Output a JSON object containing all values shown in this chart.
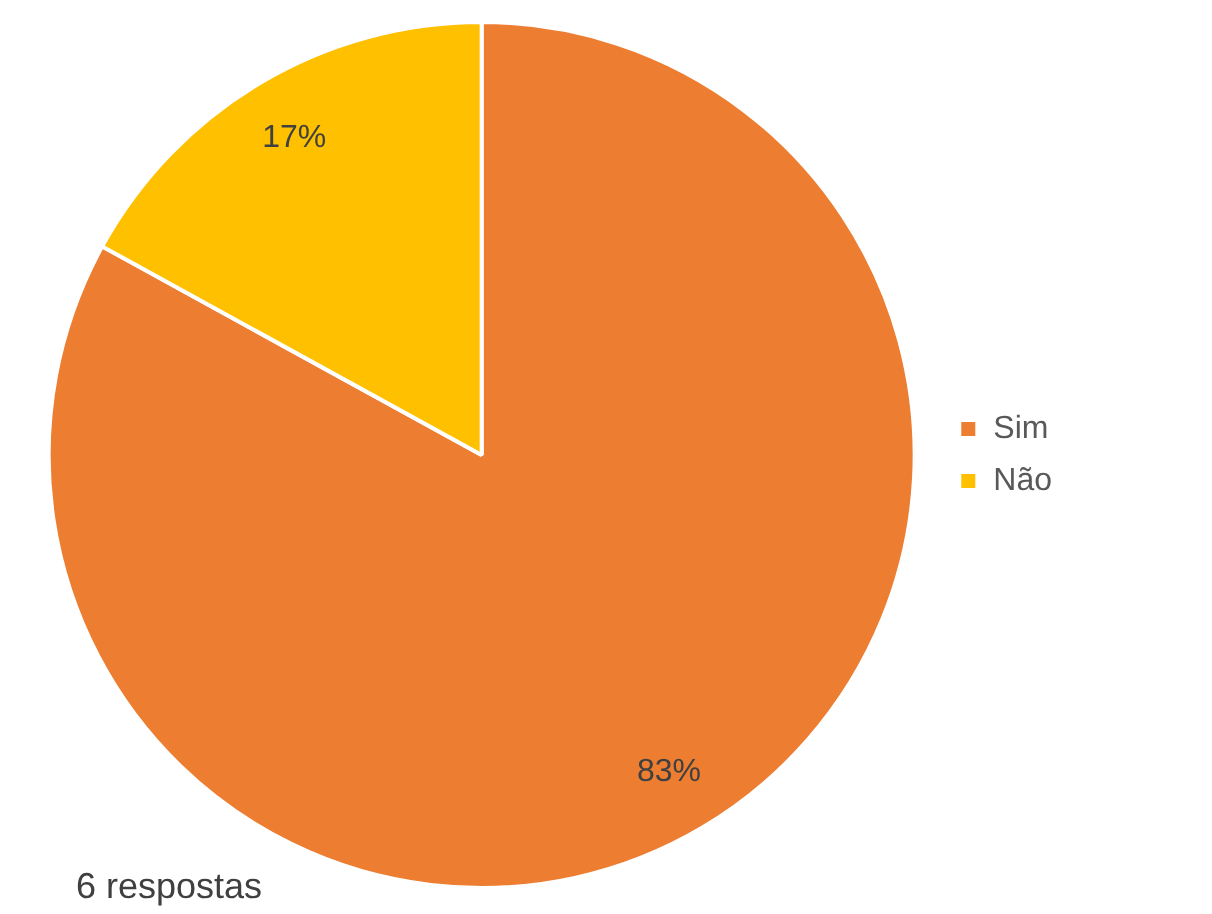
{
  "chart_data": {
    "type": "pie",
    "categories": [
      "Sim",
      "Não"
    ],
    "values": [
      83,
      17
    ],
    "colors": [
      "#ed7d31",
      "#ffc000"
    ],
    "value_labels": [
      "83%",
      "17%"
    ],
    "legend": "right",
    "annotations": [
      "6 respostas"
    ]
  }
}
